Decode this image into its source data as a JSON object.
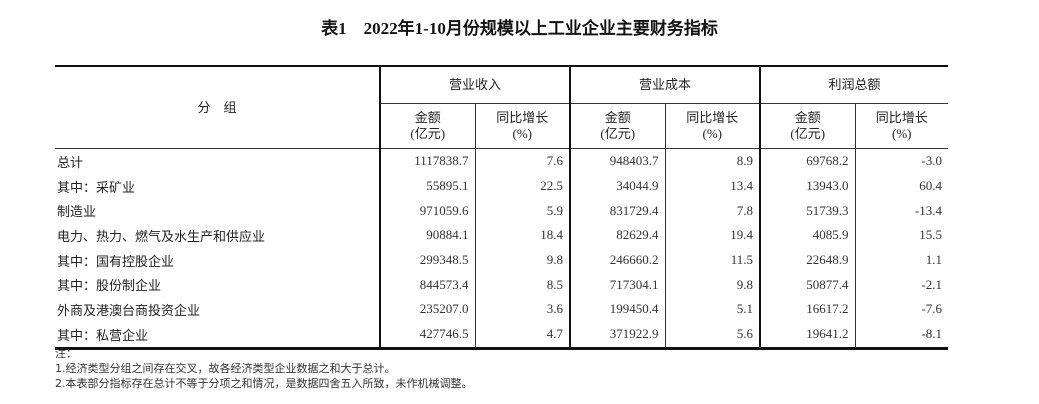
{
  "title": "表1　2022年1-10月份规模以上工业企业主要财务指标",
  "header": {
    "group": "分　组",
    "sections": [
      "营业收入",
      "营业成本",
      "利润总额"
    ],
    "amount": "金额",
    "amount_unit": "(亿元)",
    "growth": "同比增长",
    "growth_unit": "(%)"
  },
  "rows": [
    {
      "label": "总计",
      "indent": false,
      "v": [
        "1117838.7",
        "7.6",
        "948403.7",
        "8.9",
        "69768.2",
        "-3.0"
      ]
    },
    {
      "label": "其中：采矿业",
      "indent": false,
      "v": [
        "55895.1",
        "22.5",
        "34044.9",
        "13.4",
        "13943.0",
        "60.4"
      ]
    },
    {
      "label": "制造业",
      "indent": true,
      "v": [
        "971059.6",
        "5.9",
        "831729.4",
        "7.8",
        "51739.3",
        "-13.4"
      ]
    },
    {
      "label": "电力、热力、燃气及水生产和供应业",
      "indent": true,
      "v": [
        "90884.1",
        "18.4",
        "82629.4",
        "19.4",
        "4085.9",
        "15.5"
      ]
    },
    {
      "label": "其中：国有控股企业",
      "indent": false,
      "v": [
        "299348.5",
        "9.8",
        "246660.2",
        "11.5",
        "22648.9",
        "1.1"
      ]
    },
    {
      "label": "其中：股份制企业",
      "indent": false,
      "v": [
        "844573.4",
        "8.5",
        "717304.1",
        "9.8",
        "50877.4",
        "-2.1"
      ]
    },
    {
      "label": "外商及港澳台商投资企业",
      "indent": true,
      "v": [
        "235207.0",
        "3.6",
        "199450.4",
        "5.1",
        "16617.2",
        "-7.6"
      ]
    },
    {
      "label": "其中：私营企业",
      "indent": false,
      "v": [
        "427746.5",
        "4.7",
        "371922.9",
        "5.6",
        "19641.2",
        "-8.1"
      ]
    }
  ],
  "notes": [
    "注：",
    "1.经济类型分组之间存在交叉，故各经济类型企业数据之和大于总计。",
    "2.本表部分指标存在总计不等于分项之和情况，是数据四舍五入所致，未作机械调整。"
  ]
}
